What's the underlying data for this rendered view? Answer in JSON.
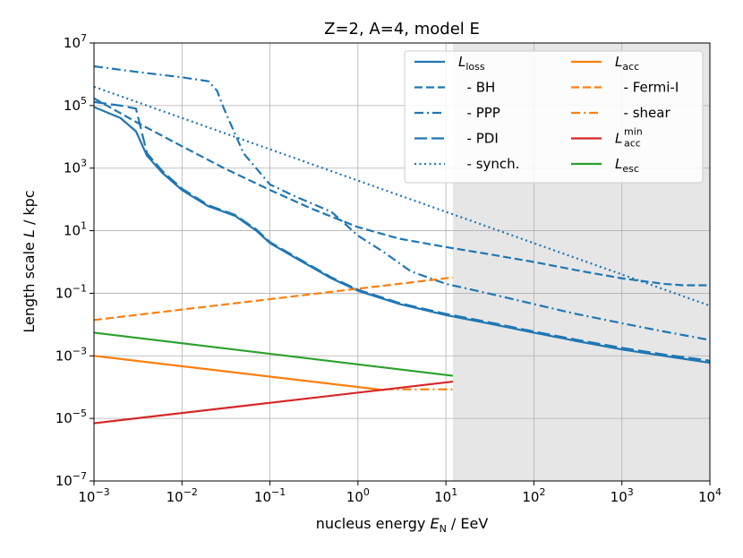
{
  "chart_data": {
    "type": "line",
    "title": "Z=2, A=4, model E",
    "xlabel": {
      "prefix": "nucleus energy ",
      "var": "E",
      "sub": "N",
      "suffix": " / EeV"
    },
    "ylabel": {
      "prefix": "Length scale ",
      "var": "L",
      "suffix": " / kpc"
    },
    "xscale": "log",
    "yscale": "log",
    "xlim": [
      0.001,
      10000
    ],
    "ylim": [
      1e-07,
      10000000.0
    ],
    "xticks": [
      {
        "value": 0.001,
        "base": "10",
        "exp": "−3"
      },
      {
        "value": 0.01,
        "base": "10",
        "exp": "−2"
      },
      {
        "value": 0.1,
        "base": "10",
        "exp": "−1"
      },
      {
        "value": 1,
        "base": "10",
        "exp": "0"
      },
      {
        "value": 10,
        "base": "10",
        "exp": "1"
      },
      {
        "value": 100,
        "base": "10",
        "exp": "2"
      },
      {
        "value": 1000,
        "base": "10",
        "exp": "3"
      },
      {
        "value": 10000,
        "base": "10",
        "exp": "4"
      }
    ],
    "yticks": [
      {
        "value": 1e-07,
        "base": "10",
        "exp": "−7"
      },
      {
        "value": 1e-05,
        "base": "10",
        "exp": "−5"
      },
      {
        "value": 0.001,
        "base": "10",
        "exp": "−3"
      },
      {
        "value": 0.1,
        "base": "10",
        "exp": "−1"
      },
      {
        "value": 10,
        "base": "10",
        "exp": "1"
      },
      {
        "value": 1000,
        "base": "10",
        "exp": "3"
      },
      {
        "value": 100000,
        "base": "10",
        "exp": "5"
      },
      {
        "value": 10000000,
        "base": "10",
        "exp": "7"
      }
    ],
    "grid": true,
    "shaded_region": {
      "x_from": 12,
      "x_to": 10000,
      "color": "#e6e6e6"
    },
    "legend_position": "top-right",
    "series": [
      {
        "id": "loss",
        "name": "L_loss",
        "color": "#1f77b4",
        "dash": "solid",
        "x": [
          0.001,
          0.002,
          0.003,
          0.004,
          0.006,
          0.01,
          0.02,
          0.04,
          0.07,
          0.1,
          0.2,
          0.5,
          1,
          3,
          10,
          30,
          100,
          300,
          1000,
          3000,
          10000
        ],
        "y": [
          90000,
          40000,
          15000,
          2500,
          700,
          200,
          60,
          30,
          10,
          4,
          1.3,
          0.3,
          0.12,
          0.045,
          0.02,
          0.011,
          0.0055,
          0.003,
          0.0016,
          0.001,
          0.0006
        ]
      },
      {
        "id": "bh",
        "name": "BH",
        "color": "#1f77b4",
        "dash": "dashed",
        "x": [
          0.001,
          0.003,
          0.01,
          0.03,
          0.1,
          0.3,
          1,
          3,
          10,
          30,
          100,
          300,
          1000,
          3000,
          5000,
          10000
        ],
        "y": [
          170000,
          30000,
          5000,
          1000,
          200,
          50,
          13,
          5.5,
          3,
          1.8,
          1,
          0.55,
          0.3,
          0.2,
          0.18,
          0.18
        ]
      },
      {
        "id": "ppp",
        "name": "PPP",
        "color": "#1f77b4",
        "dash": "dashdot",
        "x": [
          0.001,
          0.003,
          0.01,
          0.02,
          0.025,
          0.03,
          0.05,
          0.1,
          0.2,
          0.5,
          1,
          2,
          4,
          10,
          30,
          100,
          300,
          1000,
          3000,
          10000
        ],
        "y": [
          1800000,
          1200000,
          800000,
          600000,
          300000,
          80000,
          3000,
          300,
          120,
          40,
          7,
          2,
          0.5,
          0.2,
          0.1,
          0.045,
          0.022,
          0.011,
          0.006,
          0.0032
        ]
      },
      {
        "id": "pdi",
        "name": "PDI",
        "color": "#1f77b4",
        "dash": "longdash",
        "x": [
          0.001,
          0.002,
          0.003,
          0.004,
          0.006,
          0.01,
          0.02,
          0.04,
          0.07,
          0.1,
          0.2,
          0.5,
          1,
          3,
          10,
          30,
          100,
          300,
          1000,
          3000,
          10000
        ],
        "y": [
          130000,
          100000,
          80000,
          3000,
          800,
          220,
          65,
          32,
          11,
          4.3,
          1.4,
          0.32,
          0.13,
          0.048,
          0.022,
          0.012,
          0.006,
          0.0033,
          0.0018,
          0.0011,
          0.0007
        ]
      },
      {
        "id": "synch",
        "name": "synch.",
        "color": "#1f77b4",
        "dash": "dotted",
        "x": [
          0.001,
          0.01,
          0.1,
          1,
          10,
          100,
          1000,
          10000
        ],
        "y": [
          400000,
          40000,
          4000,
          400,
          40,
          4,
          0.4,
          0.04
        ]
      },
      {
        "id": "acc",
        "name": "L_acc",
        "color": "#ff7f0e",
        "dash": "solid",
        "x": [
          0.001,
          2
        ],
        "y": [
          0.001,
          8e-05
        ]
      },
      {
        "id": "fermi",
        "name": "Fermi-I",
        "color": "#ff7f0e",
        "dash": "dashed",
        "x": [
          0.001,
          12
        ],
        "y": [
          0.014,
          0.32
        ]
      },
      {
        "id": "shear",
        "name": "shear",
        "color": "#ff7f0e",
        "dash": "dashdot",
        "x": [
          2,
          12
        ],
        "y": [
          8.5e-05,
          8.5e-05
        ]
      },
      {
        "id": "accmin",
        "name": "L_acc^min",
        "color": "#d62728",
        "dash": "solid",
        "x": [
          0.001,
          12
        ],
        "y": [
          7e-06,
          0.00015
        ]
      },
      {
        "id": "esc",
        "name": "L_esc",
        "color": "#2ca02c",
        "dash": "solid",
        "x": [
          0.001,
          12
        ],
        "y": [
          0.0055,
          0.00023
        ]
      }
    ],
    "legend": [
      {
        "series": "loss",
        "var": "L",
        "sub": "loss",
        "sup": "",
        "text": ""
      },
      {
        "series": "bh",
        "var": "",
        "sub": "",
        "sup": "",
        "text": "  - BH"
      },
      {
        "series": "ppp",
        "var": "",
        "sub": "",
        "sup": "",
        "text": "  - PPP"
      },
      {
        "series": "pdi",
        "var": "",
        "sub": "",
        "sup": "",
        "text": "  - PDI"
      },
      {
        "series": "synch",
        "var": "",
        "sub": "",
        "sup": "",
        "text": "  - synch."
      },
      {
        "series": "acc",
        "var": "L",
        "sub": "acc",
        "sup": "",
        "text": ""
      },
      {
        "series": "fermi",
        "var": "",
        "sub": "",
        "sup": "",
        "text": "  - Fermi-I"
      },
      {
        "series": "shear",
        "var": "",
        "sub": "",
        "sup": "",
        "text": "  - shear"
      },
      {
        "series": "accmin",
        "var": "L",
        "sub": "acc",
        "sup": "min",
        "text": ""
      },
      {
        "series": "esc",
        "var": "L",
        "sub": "esc",
        "sup": "",
        "text": ""
      }
    ]
  }
}
